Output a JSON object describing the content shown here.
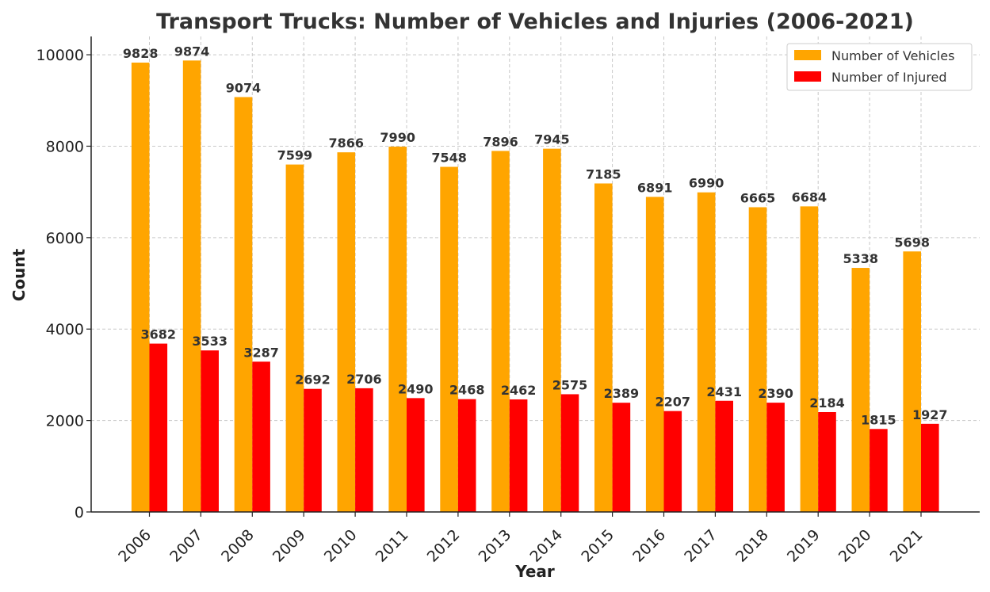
{
  "chart_data": {
    "type": "bar",
    "title": "Transport Trucks: Number of Vehicles and Injuries (2006-2021)",
    "xlabel": "Year",
    "ylabel": "Count",
    "ylim": [
      0,
      10400
    ],
    "yticks": [
      0,
      2000,
      4000,
      6000,
      8000,
      10000
    ],
    "grid": true,
    "legend_position": "top-right",
    "categories": [
      "2006",
      "2007",
      "2008",
      "2009",
      "2010",
      "2011",
      "2012",
      "2013",
      "2014",
      "2015",
      "2016",
      "2017",
      "2018",
      "2019",
      "2020",
      "2021"
    ],
    "series": [
      {
        "name": "Number of Vehicles",
        "color": "#FFA500",
        "values": [
          9828,
          9874,
          9074,
          7599,
          7866,
          7990,
          7548,
          7896,
          7945,
          7185,
          6891,
          6990,
          6665,
          6684,
          5338,
          5698
        ]
      },
      {
        "name": "Number of Injured",
        "color": "#FF0000",
        "values": [
          3682,
          3533,
          3287,
          2692,
          2706,
          2490,
          2468,
          2462,
          2575,
          2389,
          2207,
          2431,
          2390,
          2184,
          1815,
          1927
        ]
      }
    ]
  }
}
